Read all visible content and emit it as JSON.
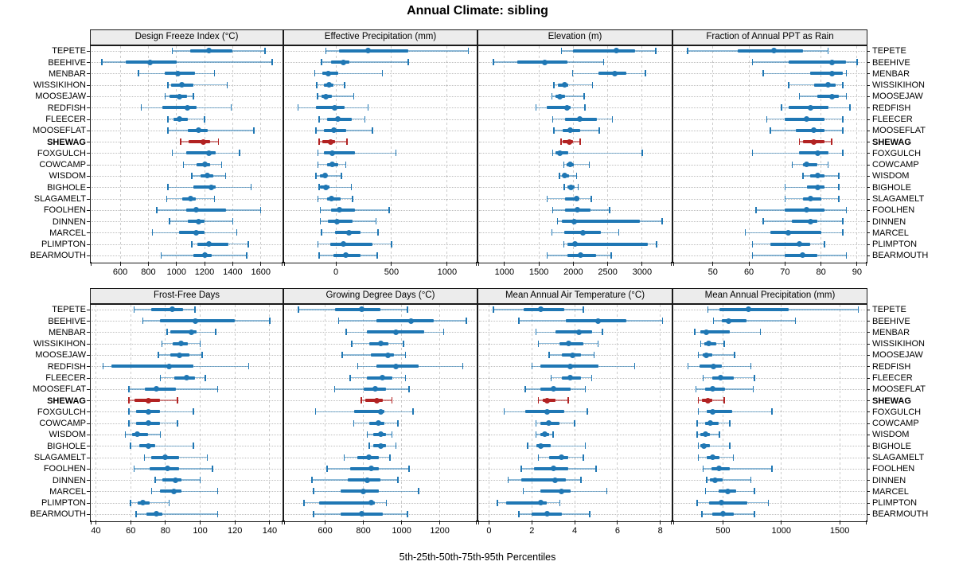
{
  "title": "Annual Climate: sibling",
  "caption": "5th-25th-50th-75th-95th Percentiles",
  "colors": {
    "normal": "#1f77b4",
    "highlight": "#b22222",
    "strip_bg": "#ececec",
    "border": "#1a1a1a"
  },
  "chart_data": {
    "type": "scatter",
    "subtype": "percentile_range_dotplot",
    "percentiles": [
      5,
      25,
      50,
      75,
      95
    ],
    "legend_position": "none",
    "grid": "dashed-vertical-dotted-row-guides",
    "highlight_station": "SHEWAG",
    "stations": [
      "TEPETE",
      "BEEHIVE",
      "MENBAR",
      "WISSIKIHON",
      "MOOSEJAW",
      "REDFISH",
      "FLEECER",
      "MOOSEFLAT",
      "SHEWAG",
      "FOXGULCH",
      "COWCAMP",
      "WISDOM",
      "BIGHOLE",
      "SLAGAMELT",
      "FOOLHEN",
      "DINNEN",
      "MARCEL",
      "PLIMPTON",
      "BEARMOUTH"
    ],
    "panels": [
      {
        "title": "Design Freeze Index (°C)",
        "grid_row": 0,
        "grid_col": 0,
        "xlim": [
          390,
          1750
        ],
        "ticks": [
          600,
          800,
          1000,
          1200,
          1400,
          1600
        ],
        "values": [
          [
            970,
            1100,
            1230,
            1400,
            1630
          ],
          [
            470,
            640,
            810,
            1000,
            1680
          ],
          [
            730,
            915,
            1010,
            1130,
            1270
          ],
          [
            940,
            960,
            1040,
            1120,
            1360
          ],
          [
            920,
            950,
            1020,
            1075,
            1120
          ],
          [
            750,
            900,
            1080,
            1145,
            1390
          ],
          [
            940,
            980,
            1020,
            1080,
            1200
          ],
          [
            940,
            1080,
            1160,
            1225,
            1550
          ],
          [
            1030,
            1085,
            1190,
            1240,
            1300
          ],
          [
            970,
            1070,
            1230,
            1280,
            1450
          ],
          [
            1050,
            1145,
            1200,
            1240,
            1320
          ],
          [
            1110,
            1170,
            1220,
            1260,
            1350
          ],
          [
            940,
            1120,
            1250,
            1280,
            1530
          ],
          [
            930,
            1040,
            1100,
            1140,
            1270
          ],
          [
            860,
            1070,
            1140,
            1350,
            1600
          ],
          [
            950,
            1080,
            1160,
            1200,
            1400
          ],
          [
            830,
            1020,
            1140,
            1200,
            1430
          ],
          [
            1110,
            1150,
            1230,
            1370,
            1510
          ],
          [
            890,
            1120,
            1200,
            1250,
            1500
          ]
        ]
      },
      {
        "title": "Effective Precipitation (mm)",
        "grid_row": 0,
        "grid_col": 1,
        "xlim": [
          -465,
          1260
        ],
        "ticks": [
          0,
          500,
          1000
        ],
        "values": [
          [
            -90,
            30,
            290,
            650,
            1190
          ],
          [
            -130,
            -40,
            70,
            120,
            650
          ],
          [
            -190,
            -120,
            -70,
            20,
            420
          ],
          [
            -170,
            -110,
            -60,
            -20,
            80
          ],
          [
            -165,
            -130,
            -90,
            -35,
            160
          ],
          [
            -340,
            -180,
            -10,
            80,
            290
          ],
          [
            -150,
            -80,
            20,
            140,
            260
          ],
          [
            -180,
            -110,
            -20,
            90,
            330
          ],
          [
            -150,
            -120,
            -50,
            -10,
            100
          ],
          [
            -160,
            -110,
            -30,
            170,
            540
          ],
          [
            -160,
            -80,
            -30,
            20,
            90
          ],
          [
            -180,
            -140,
            -100,
            -80,
            50
          ],
          [
            -150,
            -140,
            -90,
            -60,
            140
          ],
          [
            -160,
            -80,
            -40,
            40,
            150
          ],
          [
            -140,
            -40,
            30,
            170,
            480
          ],
          [
            -140,
            -70,
            10,
            150,
            360
          ],
          [
            -130,
            -10,
            120,
            220,
            380
          ],
          [
            -160,
            -50,
            70,
            330,
            500
          ],
          [
            -150,
            -20,
            90,
            220,
            370
          ]
        ]
      },
      {
        "title": "Elevation (m)",
        "grid_row": 0,
        "grid_col": 2,
        "xlim": [
          620,
          3420
        ],
        "ticks": [
          1000,
          1500,
          2000,
          2500,
          3000
        ],
        "values": [
          [
            1830,
            2000,
            2620,
            2900,
            3200
          ],
          [
            840,
            1190,
            1590,
            1910,
            2440
          ],
          [
            1990,
            2360,
            2600,
            2770,
            3050
          ],
          [
            1720,
            1780,
            1870,
            1930,
            2280
          ],
          [
            1690,
            1740,
            1810,
            1880,
            2160
          ],
          [
            1460,
            1610,
            1910,
            1960,
            2170
          ],
          [
            1700,
            1880,
            2090,
            2340,
            2570
          ],
          [
            1720,
            1840,
            1960,
            2105,
            2380
          ],
          [
            1820,
            1850,
            1940,
            1990,
            2100
          ],
          [
            1700,
            1740,
            1810,
            1930,
            3000
          ],
          [
            1860,
            1900,
            1950,
            2010,
            2230
          ],
          [
            1800,
            1840,
            1880,
            1940,
            2050
          ],
          [
            1870,
            1910,
            1970,
            2020,
            2070
          ],
          [
            1620,
            1880,
            2050,
            2090,
            2260
          ],
          [
            1700,
            1880,
            2060,
            2250,
            2530
          ],
          [
            1770,
            1830,
            2010,
            2970,
            3290
          ],
          [
            1690,
            1870,
            2140,
            2400,
            2660
          ],
          [
            1860,
            1910,
            2020,
            3080,
            3210
          ],
          [
            1620,
            1910,
            2110,
            2330,
            2550
          ]
        ]
      },
      {
        "title": "Fraction of Annual PPT as Rain",
        "grid_row": 0,
        "grid_col": 3,
        "xlim": [
          39,
          92.5
        ],
        "ticks": [
          50,
          60,
          70,
          80,
          90
        ],
        "values": [
          [
            43,
            57,
            67,
            75,
            82
          ],
          [
            61,
            71,
            83,
            87,
            90
          ],
          [
            64,
            77,
            83,
            86,
            87
          ],
          [
            71,
            78,
            82,
            84,
            86
          ],
          [
            74,
            79,
            83,
            85,
            87
          ],
          [
            69,
            71,
            77,
            82,
            88
          ],
          [
            65,
            70,
            76,
            81,
            86
          ],
          [
            66,
            73,
            78,
            81,
            86
          ],
          [
            74,
            75,
            78,
            81,
            83
          ],
          [
            61,
            74,
            79,
            82,
            86
          ],
          [
            72,
            75,
            76,
            79,
            82
          ],
          [
            75,
            77,
            79,
            81,
            85
          ],
          [
            70,
            76,
            79,
            81,
            85
          ],
          [
            70,
            75,
            77,
            80,
            85
          ],
          [
            62,
            70,
            76,
            81,
            87
          ],
          [
            64,
            72,
            77,
            79,
            86
          ],
          [
            59,
            66,
            71,
            80,
            86
          ],
          [
            61,
            66,
            74,
            77,
            81
          ],
          [
            61,
            70,
            75,
            79,
            87
          ]
        ]
      },
      {
        "title": "Frost-Free Days",
        "grid_row": 1,
        "grid_col": 0,
        "xlim": [
          37,
          147
        ],
        "ticks": [
          40,
          60,
          80,
          100,
          120,
          140
        ],
        "values": [
          [
            62,
            72,
            84,
            90,
            97
          ],
          [
            67,
            77,
            97,
            120,
            140
          ],
          [
            81,
            83,
            95,
            98,
            109
          ],
          [
            78,
            84,
            89,
            93,
            100
          ],
          [
            76,
            83,
            88,
            94,
            101
          ],
          [
            44,
            49,
            82,
            96,
            128
          ],
          [
            77,
            85,
            92,
            97,
            103
          ],
          [
            59,
            68,
            75,
            86,
            110
          ],
          [
            59,
            62,
            70,
            77,
            87
          ],
          [
            59,
            63,
            70,
            77,
            96
          ],
          [
            59,
            63,
            70,
            77,
            87
          ],
          [
            57,
            61,
            64,
            70,
            77
          ],
          [
            60,
            65,
            70,
            74,
            96
          ],
          [
            68,
            72,
            80,
            88,
            104
          ],
          [
            62,
            71,
            81,
            88,
            107
          ],
          [
            74,
            78,
            86,
            89,
            100
          ],
          [
            72,
            77,
            85,
            89,
            110
          ],
          [
            60,
            64,
            67,
            71,
            82
          ],
          [
            63,
            69,
            75,
            78,
            110
          ]
        ]
      },
      {
        "title": "Growing Degree Days (°C)",
        "grid_row": 1,
        "grid_col": 1,
        "xlim": [
          385,
          1390
        ],
        "ticks": [
          600,
          800,
          1000,
          1200
        ],
        "values": [
          [
            460,
            650,
            790,
            890,
            1030
          ],
          [
            670,
            870,
            1050,
            1170,
            1340
          ],
          [
            710,
            820,
            970,
            1120,
            1220
          ],
          [
            740,
            830,
            890,
            930,
            1010
          ],
          [
            690,
            840,
            930,
            960,
            1020
          ],
          [
            770,
            870,
            970,
            1090,
            1320
          ],
          [
            730,
            820,
            900,
            950,
            1020
          ],
          [
            650,
            800,
            860,
            920,
            1040
          ],
          [
            790,
            810,
            870,
            900,
            950
          ],
          [
            550,
            750,
            890,
            910,
            1060
          ],
          [
            750,
            830,
            880,
            910,
            980
          ],
          [
            820,
            850,
            890,
            920,
            950
          ],
          [
            830,
            850,
            890,
            920,
            970
          ],
          [
            700,
            770,
            830,
            880,
            940
          ],
          [
            610,
            730,
            840,
            880,
            1040
          ],
          [
            530,
            720,
            820,
            890,
            980
          ],
          [
            540,
            680,
            800,
            880,
            1090
          ],
          [
            490,
            570,
            840,
            860,
            920
          ],
          [
            540,
            680,
            790,
            900,
            1030
          ]
        ]
      },
      {
        "title": "Mean Annual Air Temperature (°C)",
        "grid_row": 1,
        "grid_col": 2,
        "xlim": [
          -0.5,
          8.5
        ],
        "ticks": [
          0,
          2,
          4,
          6,
          8
        ],
        "values": [
          [
            0.2,
            1.6,
            2.4,
            3.5,
            4.4
          ],
          [
            1.4,
            3.6,
            5.1,
            6.4,
            8.1
          ],
          [
            2.2,
            3.1,
            4.2,
            4.8,
            5.3
          ],
          [
            2.3,
            3.3,
            3.7,
            4.4,
            5.1
          ],
          [
            2.8,
            3.4,
            3.9,
            4.3,
            4.9
          ],
          [
            2.0,
            2.4,
            3.8,
            5.1,
            6.8
          ],
          [
            2.9,
            3.4,
            3.8,
            4.3,
            4.8
          ],
          [
            1.7,
            2.4,
            3.0,
            3.8,
            4.5
          ],
          [
            2.3,
            2.5,
            2.7,
            3.1,
            3.7
          ],
          [
            0.7,
            1.7,
            2.7,
            3.5,
            4.6
          ],
          [
            2.2,
            2.4,
            2.8,
            3.3,
            4.0
          ],
          [
            2.2,
            2.4,
            2.6,
            2.8,
            3.0
          ],
          [
            1.8,
            2.2,
            2.4,
            2.9,
            4.5
          ],
          [
            2.3,
            2.8,
            3.4,
            3.7,
            4.4
          ],
          [
            1.5,
            2.1,
            3.0,
            3.7,
            5.0
          ],
          [
            0.9,
            1.5,
            3.1,
            3.6,
            4.3
          ],
          [
            1.6,
            2.4,
            3.4,
            3.8,
            5.5
          ],
          [
            0.4,
            0.8,
            2.4,
            2.7,
            3.3
          ],
          [
            1.4,
            2.0,
            2.7,
            3.4,
            4.7
          ]
        ]
      },
      {
        "title": "Mean Annual Precipitation (mm)",
        "grid_row": 1,
        "grid_col": 3,
        "xlim": [
          75,
          1725
        ],
        "ticks": [
          500,
          1000,
          1500
        ],
        "values": [
          [
            370,
            470,
            720,
            1060,
            1660
          ],
          [
            420,
            490,
            550,
            700,
            1120
          ],
          [
            260,
            310,
            360,
            560,
            820
          ],
          [
            310,
            340,
            380,
            440,
            510
          ],
          [
            290,
            330,
            360,
            410,
            600
          ],
          [
            200,
            300,
            420,
            490,
            740
          ],
          [
            330,
            410,
            480,
            590,
            770
          ],
          [
            270,
            350,
            410,
            520,
            760
          ],
          [
            290,
            320,
            370,
            410,
            510
          ],
          [
            290,
            360,
            410,
            580,
            920
          ],
          [
            280,
            350,
            390,
            460,
            560
          ],
          [
            280,
            310,
            350,
            390,
            470
          ],
          [
            290,
            310,
            340,
            390,
            560
          ],
          [
            290,
            360,
            410,
            470,
            590
          ],
          [
            330,
            400,
            470,
            560,
            920
          ],
          [
            360,
            390,
            430,
            500,
            740
          ],
          [
            350,
            460,
            540,
            610,
            770
          ],
          [
            280,
            380,
            490,
            710,
            890
          ],
          [
            320,
            410,
            500,
            590,
            770
          ]
        ]
      }
    ]
  }
}
